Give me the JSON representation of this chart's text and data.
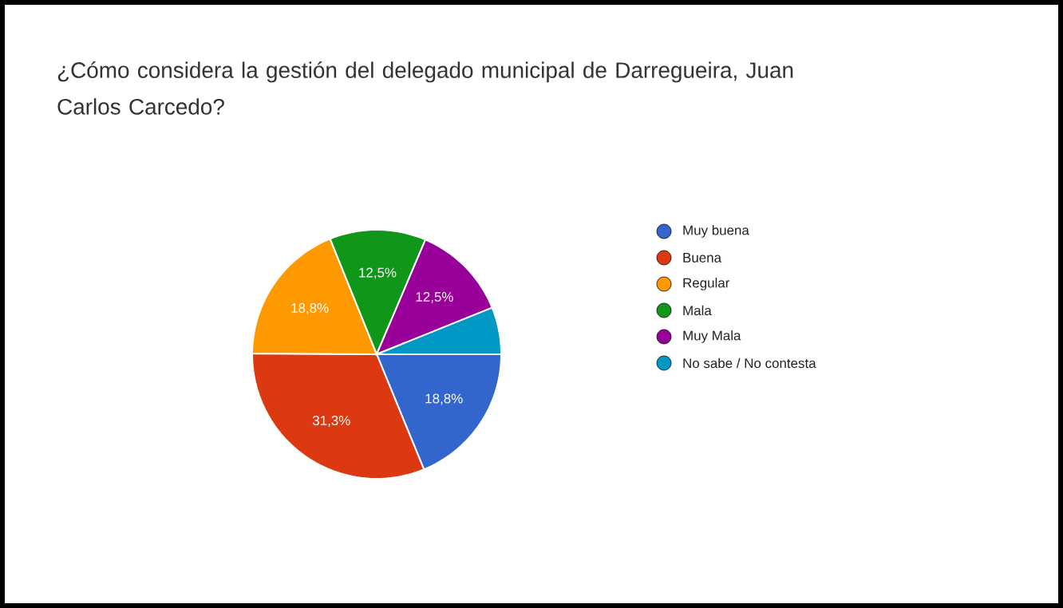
{
  "chart_data": {
    "type": "pie",
    "title": "¿Cómo considera la gestión del delegado municipal de Darregueira, Juan Carlos Carcedo?",
    "categories": [
      "Muy buena",
      "Buena",
      "Regular",
      "Mala",
      "Muy Mala",
      "No sabe / No contesta"
    ],
    "values": [
      18.8,
      31.3,
      18.8,
      12.5,
      12.5,
      6.1
    ],
    "value_labels": [
      "18,8%",
      "31,3%",
      "18,8%",
      "12,5%",
      "12,5%",
      null
    ],
    "colors": [
      "#3366cc",
      "#dc3912",
      "#ff9900",
      "#109618",
      "#990099",
      "#0099c6"
    ],
    "legend": "right"
  }
}
